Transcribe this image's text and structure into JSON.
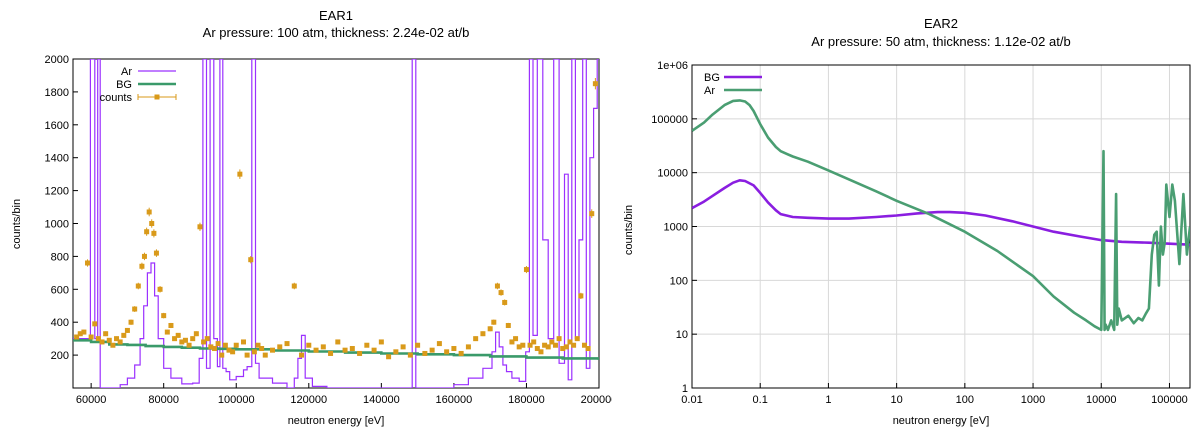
{
  "chart_data": [
    {
      "type": "line",
      "title": "EAR1",
      "subtitle": "Ar pressure: 100 atm, thickness: 2.24e-02 at/b",
      "xlabel": "neutron energy [eV]",
      "ylabel": "counts/bin",
      "xlim": [
        55000,
        200000
      ],
      "ylim": [
        0,
        2000
      ],
      "x_ticks": [
        60000,
        80000,
        100000,
        120000,
        140000,
        160000,
        180000,
        200000
      ],
      "x_tick_labels": [
        "60000",
        "80000",
        "100000",
        "120000",
        "140000",
        "160000",
        "180000",
        "200000"
      ],
      "y_ticks": [
        200,
        400,
        600,
        800,
        1000,
        1200,
        1400,
        1600,
        1800,
        2000
      ],
      "y_tick_labels": [
        "200",
        "400",
        "600",
        "800",
        "1000",
        "1200",
        "1400",
        "1600",
        "1800",
        "2000"
      ],
      "legend_position": "top-left",
      "series": [
        {
          "name": "Ar",
          "color": "#9b30ff",
          "style": "step",
          "x": [
            55000,
            58000,
            59000,
            59800,
            60500,
            61000,
            61800,
            62500,
            65000,
            68000,
            70000,
            72000,
            73500,
            74500,
            75500,
            76500,
            77500,
            78500,
            80000,
            82000,
            85000,
            88000,
            89800,
            90800,
            91800,
            92800,
            93800,
            94800,
            95500,
            96300,
            97200,
            98200,
            100000,
            102000,
            103000,
            104300,
            105300,
            106300,
            110000,
            114000,
            116000,
            117000,
            118000,
            119000,
            121000,
            125000,
            130000,
            140000,
            148500,
            149500,
            150500,
            155000,
            160000,
            164000,
            168000,
            170500,
            171500,
            172500,
            173500,
            174500,
            176000,
            178000,
            179800,
            180800,
            181800,
            183000,
            184500,
            186000,
            187500,
            189000,
            190500,
            191500,
            192500,
            193500,
            194500,
            195500,
            196500,
            197500,
            198500,
            199500
          ],
          "y": [
            300,
            300,
            300,
            2000,
            2000,
            300,
            2000,
            0,
            0,
            20,
            60,
            140,
            300,
            500,
            700,
            760,
            560,
            300,
            120,
            60,
            25,
            30,
            180,
            2000,
            120,
            2000,
            300,
            130,
            2000,
            120,
            100,
            50,
            70,
            110,
            130,
            2000,
            150,
            60,
            30,
            0,
            60,
            180,
            320,
            60,
            10,
            0,
            0,
            0,
            2000,
            0,
            0,
            0,
            20,
            60,
            120,
            220,
            340,
            250,
            140,
            100,
            60,
            40,
            220,
            2000,
            320,
            2000,
            900,
            300,
            2000,
            150,
            1300,
            50,
            2000,
            300,
            900,
            2000,
            120,
            1400,
            1700,
            2000
          ]
        },
        {
          "name": "BG",
          "color": "#3a9a6a",
          "style": "step",
          "x": [
            55000,
            60000,
            65000,
            70000,
            75000,
            80000,
            85000,
            90000,
            95000,
            100000,
            110000,
            120000,
            130000,
            140000,
            150000,
            160000,
            170000,
            180000,
            190000,
            200000
          ],
          "y": [
            290,
            280,
            265,
            262,
            255,
            250,
            245,
            240,
            238,
            235,
            228,
            222,
            215,
            210,
            205,
            200,
            192,
            185,
            180,
            170
          ]
        },
        {
          "name": "counts",
          "color": "#d99a1a",
          "style": "points-with-errorbars",
          "x": [
            56000,
            57000,
            58000,
            59000,
            60000,
            61000,
            62000,
            63000,
            64000,
            65000,
            66000,
            67000,
            68000,
            69000,
            70000,
            71000,
            72000,
            73000,
            74000,
            74700,
            75300,
            76000,
            76700,
            77300,
            78000,
            79000,
            80000,
            81000,
            82000,
            83000,
            84000,
            85000,
            86000,
            87000,
            88000,
            89000,
            90000,
            91000,
            92000,
            93000,
            94000,
            95000,
            96000,
            97000,
            98000,
            99000,
            100000,
            101000,
            102000,
            103000,
            104000,
            105000,
            106000,
            107000,
            108000,
            110000,
            112000,
            114000,
            116000,
            118000,
            120000,
            122000,
            124000,
            126000,
            128000,
            130000,
            132000,
            134000,
            136000,
            138000,
            140000,
            142000,
            144000,
            146000,
            148000,
            150000,
            152000,
            154000,
            156000,
            158000,
            160000,
            162000,
            164000,
            166000,
            168000,
            170000,
            171000,
            172000,
            173000,
            174000,
            175000,
            176000,
            177000,
            178000,
            179000,
            180000,
            181000,
            182000,
            183000,
            184000,
            185000,
            186000,
            187000,
            188000,
            189000,
            190000,
            191000,
            192000,
            193000,
            194000,
            195000,
            196000,
            197000,
            198000,
            199000
          ],
          "y": [
            310,
            330,
            340,
            760,
            310,
            390,
            300,
            280,
            330,
            290,
            260,
            300,
            280,
            320,
            350,
            400,
            480,
            620,
            740,
            800,
            950,
            1070,
            1000,
            940,
            820,
            600,
            440,
            340,
            380,
            300,
            320,
            280,
            290,
            260,
            300,
            330,
            980,
            280,
            300,
            250,
            240,
            270,
            200,
            260,
            230,
            220,
            260,
            1300,
            280,
            200,
            780,
            220,
            260,
            240,
            200,
            230,
            250,
            270,
            620,
            200,
            260,
            230,
            250,
            210,
            280,
            230,
            240,
            210,
            260,
            230,
            280,
            190,
            220,
            250,
            200,
            260,
            210,
            230,
            270,
            220,
            240,
            210,
            250,
            300,
            330,
            360,
            400,
            620,
            580,
            520,
            380,
            280,
            300,
            250,
            260,
            720,
            260,
            280,
            240,
            220,
            260,
            250,
            280,
            260,
            300,
            240,
            250,
            280,
            260,
            300,
            560,
            260,
            240,
            1060,
            1850
          ]
        }
      ]
    },
    {
      "type": "line",
      "title": "EAR2",
      "subtitle": "Ar pressure: 50 atm, thickness: 1.12e-02 at/b",
      "xlabel": "neutron energy [eV]",
      "ylabel": "counts/bin",
      "xscale": "log",
      "yscale": "log",
      "xlim": [
        0.01,
        200000
      ],
      "ylim": [
        1,
        1000000
      ],
      "grid": true,
      "x_ticks": [
        0.01,
        0.1,
        1,
        10,
        100,
        1000,
        10000,
        100000
      ],
      "x_tick_labels": [
        "0.01",
        "0.1",
        "1",
        "10",
        "100",
        "1000",
        "10000",
        "100000"
      ],
      "y_ticks": [
        1,
        10,
        100,
        1000,
        10000,
        100000,
        1000000
      ],
      "y_tick_labels": [
        "1",
        "10",
        "100",
        "1000",
        "10000",
        "100000",
        "1e+06"
      ],
      "legend_position": "top-left",
      "series": [
        {
          "name": "BG",
          "color": "#8a1ee0",
          "x": [
            0.01,
            0.015,
            0.02,
            0.03,
            0.04,
            0.05,
            0.06,
            0.08,
            0.1,
            0.13,
            0.17,
            0.2,
            0.3,
            0.5,
            1,
            2,
            5,
            10,
            20,
            40,
            60,
            100,
            200,
            500,
            1000,
            2000,
            5000,
            10000,
            20000,
            50000,
            100000,
            200000
          ],
          "y": [
            2200,
            2900,
            3700,
            5200,
            6500,
            7200,
            7000,
            5800,
            4200,
            2800,
            2000,
            1700,
            1500,
            1450,
            1400,
            1400,
            1500,
            1600,
            1750,
            1850,
            1850,
            1800,
            1600,
            1250,
            1000,
            800,
            650,
            560,
            520,
            500,
            480,
            460
          ]
        },
        {
          "name": "Ar",
          "color": "#4a9e72",
          "x": [
            0.01,
            0.015,
            0.02,
            0.03,
            0.04,
            0.05,
            0.06,
            0.07,
            0.08,
            0.1,
            0.13,
            0.17,
            0.2,
            0.25,
            0.3,
            0.5,
            1,
            2,
            5,
            10,
            30,
            100,
            300,
            1000,
            2000,
            4000,
            6000,
            8000,
            10000,
            10800,
            11200,
            11600,
            12500,
            14000,
            15500,
            16500,
            17200,
            18000,
            20000,
            25000,
            30000,
            35000,
            40000,
            45000,
            50000,
            55000,
            60000,
            65000,
            70000,
            75000,
            80000,
            85000,
            90000,
            100000,
            110000,
            120000,
            140000,
            160000,
            180000,
            200000
          ],
          "y": [
            60000,
            85000,
            120000,
            180000,
            215000,
            220000,
            210000,
            180000,
            140000,
            80000,
            45000,
            30000,
            25000,
            22000,
            20000,
            16000,
            11000,
            7500,
            4500,
            3000,
            1700,
            800,
            350,
            120,
            50,
            25,
            18,
            14,
            12,
            25000,
            12,
            15,
            12,
            18,
            12,
            4000,
            15,
            30,
            18,
            22,
            16,
            20,
            18,
            24,
            30,
            300,
            700,
            800,
            80,
            1000,
            300,
            500,
            6000,
            1500,
            6000,
            3000,
            200,
            4000,
            300,
            1000
          ]
        }
      ]
    }
  ]
}
